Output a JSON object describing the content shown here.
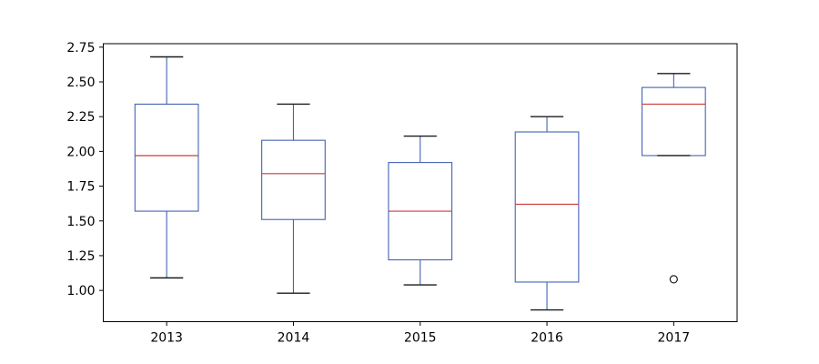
{
  "chart_data": {
    "type": "boxplot",
    "title": "",
    "xlabel": "",
    "ylabel": "",
    "grid": false,
    "legend": null,
    "categories": [
      "2013",
      "2014",
      "2015",
      "2016",
      "2017"
    ],
    "series": [
      {
        "label": "2013",
        "whislo": 1.09,
        "q1": 1.57,
        "med": 1.97,
        "q3": 2.34,
        "whishi": 2.68,
        "fliers": []
      },
      {
        "label": "2014",
        "whislo": 0.98,
        "q1": 1.51,
        "med": 1.84,
        "q3": 2.08,
        "whishi": 2.34,
        "fliers": []
      },
      {
        "label": "2015",
        "whislo": 1.04,
        "q1": 1.22,
        "med": 1.57,
        "q3": 1.92,
        "whishi": 2.11,
        "fliers": []
      },
      {
        "label": "2016",
        "whislo": 0.86,
        "q1": 1.06,
        "med": 1.62,
        "q3": 2.14,
        "whishi": 2.25,
        "fliers": []
      },
      {
        "label": "2017",
        "whislo": 1.97,
        "q1": 1.97,
        "med": 2.34,
        "q3": 2.46,
        "whishi": 2.56,
        "fliers": [
          1.08
        ]
      }
    ],
    "yticks": [
      1.0,
      1.25,
      1.5,
      1.75,
      2.0,
      2.25,
      2.5,
      2.75
    ],
    "ytick_decimals": 2,
    "ylim": [
      0.775,
      2.775
    ],
    "colors": {
      "box": "#4463b8",
      "whisker": "#4463b8",
      "median": "#cd3b3b",
      "cap": "#1c1c1c",
      "flier": "#1c1c1c",
      "axis": "#000000",
      "background": "#ffffff"
    }
  }
}
